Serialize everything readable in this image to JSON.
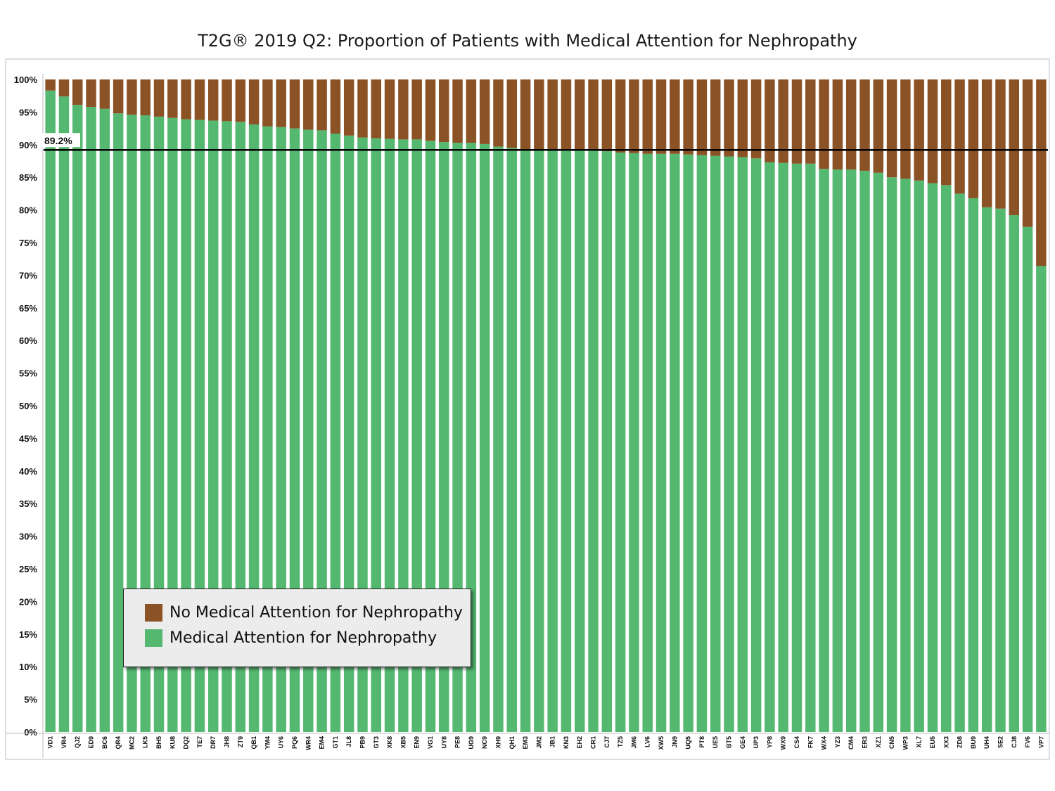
{
  "chart_data": {
    "type": "bar",
    "stacked": true,
    "title": "T2G® 2019 Q2: Proportion of Patients with Medical Attention for Nephropathy",
    "xlabel": "",
    "ylabel": "",
    "ylim": [
      0,
      100
    ],
    "y_ticks": [
      "0%",
      "5%",
      "10%",
      "15%",
      "20%",
      "25%",
      "30%",
      "35%",
      "40%",
      "45%",
      "50%",
      "55%",
      "60%",
      "65%",
      "70%",
      "75%",
      "80%",
      "85%",
      "90%",
      "95%",
      "100%"
    ],
    "categories": [
      "VD1",
      "VR4",
      "QJ2",
      "ED9",
      "BC6",
      "QR4",
      "MC2",
      "LK5",
      "BH5",
      "KU8",
      "DQ2",
      "TE7",
      "DR7",
      "JH8",
      "ZT9",
      "QB1",
      "YM4",
      "UY6",
      "PQ6",
      "WR4",
      "EM4",
      "GT1",
      "JL8",
      "PB9",
      "GT3",
      "XK8",
      "XB5",
      "EN9",
      "VG1",
      "UY8",
      "PE8",
      "UG9",
      "NC9",
      "XH9",
      "QH1",
      "EM3",
      "JM2",
      "JB1",
      "KN3",
      "EH2",
      "CR1",
      "CJ7",
      "TZ5",
      "JM6",
      "LV6",
      "XW5",
      "JN9",
      "UQ5",
      "PT8",
      "UE5",
      "BT5",
      "GE4",
      "UP3",
      "YP8",
      "WX9",
      "CS4",
      "FK7",
      "WX4",
      "YZ3",
      "CM4",
      "ER3",
      "XZ1",
      "CN5",
      "WP3",
      "XL7",
      "EU5",
      "XX3",
      "ZD8",
      "BU9",
      "UH4",
      "SE2",
      "CJ8",
      "FV6",
      "VP7"
    ],
    "series": [
      {
        "name": "Medical Attention for Nephropathy",
        "color": "#55b870",
        "values": [
          98.3,
          97.4,
          96.1,
          95.8,
          95.5,
          94.8,
          94.6,
          94.5,
          94.3,
          94.1,
          93.9,
          93.8,
          93.7,
          93.6,
          93.5,
          93.1,
          92.8,
          92.7,
          92.5,
          92.3,
          92.2,
          91.7,
          91.4,
          91.1,
          91.0,
          90.9,
          90.8,
          90.8,
          90.6,
          90.4,
          90.3,
          90.3,
          90.1,
          89.7,
          89.5,
          89.3,
          89.2,
          89.2,
          89.2,
          89.2,
          89.1,
          89.0,
          88.8,
          88.7,
          88.6,
          88.6,
          88.6,
          88.5,
          88.4,
          88.3,
          88.2,
          88.1,
          87.9,
          87.3,
          87.2,
          87.1,
          87.1,
          86.3,
          86.2,
          86.2,
          86.0,
          85.7,
          85.0,
          84.8,
          84.5,
          84.1,
          83.8,
          82.5,
          81.8,
          80.4,
          80.2,
          79.2,
          77.4,
          71.4
        ]
      },
      {
        "name": "No Medical Attention for Nephropathy",
        "color": "#8b5226",
        "values": [
          1.7,
          2.6,
          3.9,
          4.2,
          4.5,
          5.2,
          5.4,
          5.5,
          5.7,
          5.9,
          6.1,
          6.2,
          6.3,
          6.4,
          6.5,
          6.9,
          7.2,
          7.3,
          7.5,
          7.7,
          7.8,
          8.3,
          8.6,
          8.9,
          9.0,
          9.1,
          9.2,
          9.2,
          9.4,
          9.6,
          9.7,
          9.7,
          9.9,
          10.3,
          10.5,
          10.7,
          10.8,
          10.8,
          10.8,
          10.8,
          10.9,
          11.0,
          11.2,
          11.3,
          11.4,
          11.4,
          11.4,
          11.5,
          11.6,
          11.7,
          11.8,
          11.9,
          12.1,
          12.7,
          12.8,
          12.9,
          12.9,
          13.7,
          13.8,
          13.8,
          14.0,
          14.3,
          15.0,
          15.2,
          15.5,
          15.9,
          16.2,
          17.5,
          18.2,
          19.6,
          19.8,
          20.8,
          22.6,
          28.6
        ]
      }
    ],
    "reference_line": {
      "value": 89.2,
      "label": "89.2%"
    },
    "legend": {
      "placement": "bottom-left",
      "items": [
        {
          "label": "No Medical Attention for Nephropathy",
          "color": "#8b5226"
        },
        {
          "label": "Medical Attention for Nephropathy",
          "color": "#55b870"
        }
      ]
    },
    "grid": false
  }
}
